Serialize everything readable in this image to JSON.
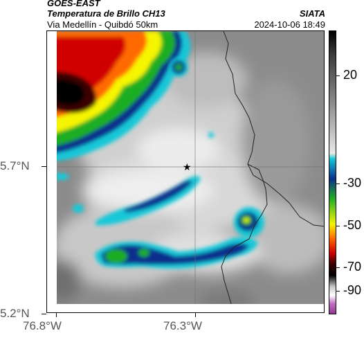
{
  "header": {
    "satellite": "GOES-EAST",
    "product": "Temperatura de Brillo CH13",
    "location": "Via Medellín - Quibdó 50km",
    "source": "SIATA",
    "timestamp": "2024-10-06 18:49"
  },
  "map": {
    "lat_labels": [
      "5.7°N",
      "5.2°N"
    ],
    "lon_labels": [
      "76.8°W",
      "76.3°W"
    ],
    "marker": "star-marker"
  },
  "colorbar": {
    "labels": [
      "20",
      "-30",
      "-50",
      "-70",
      "-90"
    ],
    "units_hint": "brightness temperature scale"
  },
  "colors": {
    "coldest": "#000000",
    "red": "#d10000",
    "orange": "#ff6a00",
    "yellow": "#f5f500",
    "green": "#1fae22",
    "blue": "#0a2f8c",
    "cyan": "#14c8d8"
  }
}
